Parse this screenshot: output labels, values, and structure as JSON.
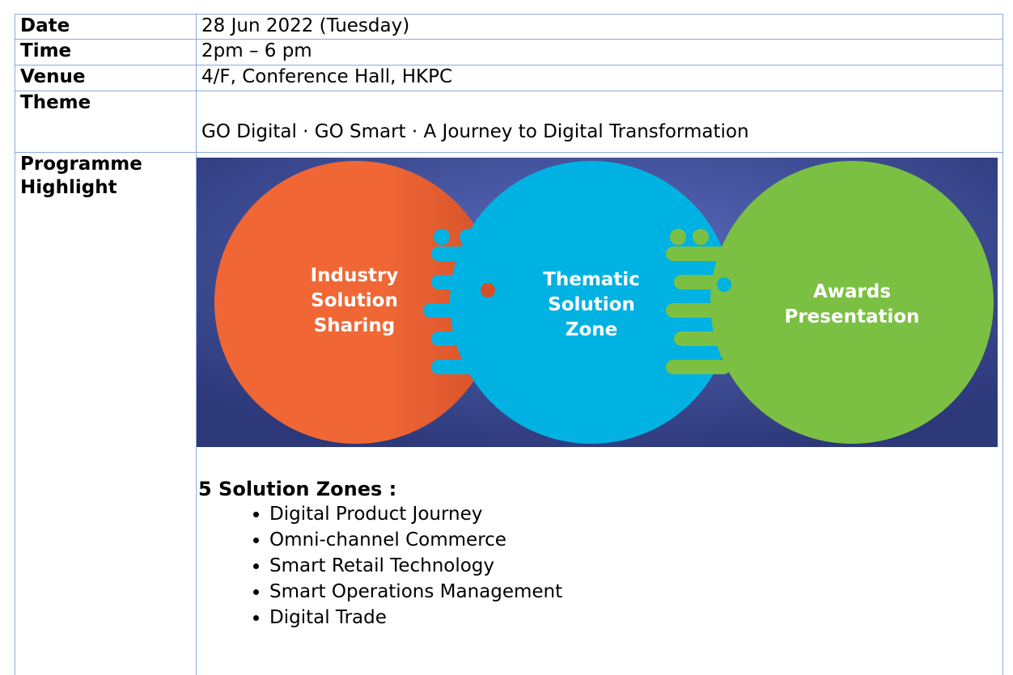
{
  "table": {
    "rows": [
      [
        "Date",
        "28 Jun 2022 (Tuesday)"
      ],
      [
        "Time",
        "2pm – 6 pm"
      ],
      [
        "Venue",
        "4/F, Conference Hall, HKPC"
      ],
      [
        "Theme",
        "GO Digital · GO Smart · A Journey to Digital Transformation"
      ]
    ]
  },
  "highlight": {
    "label": "Programme Highlight",
    "circles": [
      "Industry Solution Sharing",
      "Thematic Solution Zone",
      "Awards Presentation"
    ],
    "zones_title": "5 Solution Zones :",
    "zones": [
      "Digital Product Journey",
      "Omni-channel Commerce",
      "Smart Retail Technology",
      "Smart Operations Management",
      "Digital Trade"
    ]
  }
}
